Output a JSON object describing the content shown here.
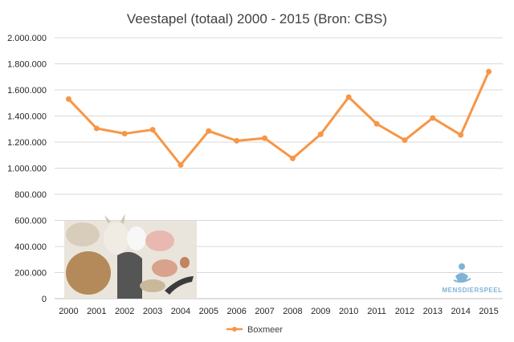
{
  "chart_data": {
    "type": "line",
    "title": "Veestapel (totaal) 2000 - 2015 (Bron: CBS)",
    "xlabel": "",
    "ylabel": "",
    "categories": [
      "2000",
      "2001",
      "2002",
      "2003",
      "2004",
      "2005",
      "2006",
      "2007",
      "2008",
      "2009",
      "2010",
      "2011",
      "2012",
      "2013",
      "2014",
      "2015"
    ],
    "series": [
      {
        "name": "Boxmeer",
        "values": [
          1530000,
          1305000,
          1265000,
          1295000,
          1025000,
          1285000,
          1210000,
          1230000,
          1075000,
          1260000,
          1545000,
          1340000,
          1215000,
          1385000,
          1255000,
          1740000
        ],
        "color": "#f79646"
      }
    ],
    "ylim": [
      0,
      2000000
    ],
    "ytick_labels": [
      "0",
      "200.000",
      "400.000",
      "600.000",
      "800.000",
      "1.000.000",
      "1.200.000",
      "1.400.000",
      "1.600.000",
      "1.800.000",
      "2.000.000"
    ],
    "grid": true,
    "legend_position": "bottom"
  },
  "logo": {
    "text": "MENSDIERSPEEL",
    "color": "#7fb3d5"
  },
  "colors": {
    "grid": "#d9d9d9",
    "axis": "#bfbfbf"
  }
}
